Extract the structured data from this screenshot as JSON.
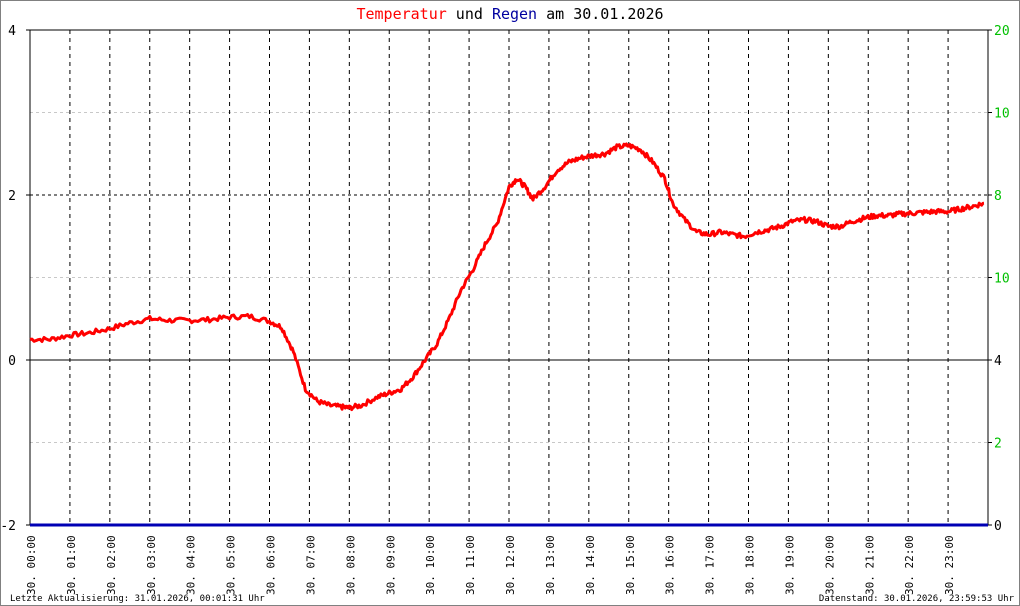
{
  "title": {
    "part1": "Temperatur",
    "part2": " und ",
    "part3": "Regen",
    "part4": " am 30.01.2026"
  },
  "colors": {
    "temperature": "#ff0000",
    "rain": "#0000b4",
    "right_axis_labels": "#00c000",
    "title_text": "#000000",
    "title_temp": "#ff0000",
    "title_rain": "#0000a0",
    "zero_line": "#000000",
    "grid": "#000000",
    "minor_grid": "#c8c8c8",
    "frame": "#000000"
  },
  "footer": {
    "left": "Letzte Aktualisierung: 31.01.2026, 00:01:31 Uhr",
    "right": "Datenstand: 30.01.2026, 23:59:53 Uhr"
  },
  "chart_data": {
    "type": "line",
    "left_axis": {
      "ylim": [
        -2,
        4
      ],
      "ticks": [
        "-2",
        "0",
        "2",
        "4"
      ],
      "tick_values": [
        -2,
        0,
        2,
        4
      ]
    },
    "right_axis": {
      "ticks": [
        "0",
        "2",
        "4",
        "10",
        "8",
        "10",
        "20"
      ],
      "tick_values": [
        -2,
        -1,
        0,
        1,
        2,
        3,
        4
      ]
    },
    "x_ticks": [
      "30. 00:00",
      "30. 01:00",
      "30. 02:00",
      "30. 03:00",
      "30. 04:00",
      "30. 05:00",
      "30. 06:00",
      "30. 07:00",
      "30. 08:00",
      "30. 09:00",
      "30. 10:00",
      "30. 11:00",
      "30. 12:00",
      "30. 13:00",
      "30. 14:00",
      "30. 15:00",
      "30. 16:00",
      "30. 17:00",
      "30. 18:00",
      "30. 19:00",
      "30. 20:00",
      "30. 21:00",
      "30. 22:00",
      "30. 23:00"
    ],
    "xlim_hours": [
      0,
      24
    ],
    "grid": true,
    "series": [
      {
        "name": "Temperatur",
        "x_hours": [
          0,
          0.5,
          1.0,
          1.5,
          2.0,
          2.5,
          3.0,
          3.5,
          4.0,
          4.5,
          5.0,
          5.5,
          6.0,
          6.3,
          6.6,
          6.9,
          7.2,
          7.5,
          7.8,
          8.0,
          8.3,
          8.7,
          9.0,
          9.3,
          9.6,
          9.9,
          10.2,
          10.5,
          10.8,
          11.1,
          11.4,
          11.7,
          12.0,
          12.2,
          12.4,
          12.6,
          12.9,
          13.2,
          13.5,
          13.8,
          14.1,
          14.4,
          14.7,
          15.0,
          15.3,
          15.6,
          15.9,
          16.1,
          16.4,
          16.7,
          17.0,
          17.3,
          17.6,
          17.9,
          18.2,
          18.5,
          18.8,
          19.1,
          19.4,
          19.7,
          20.0,
          20.3,
          20.6,
          20.9,
          21.2,
          21.5,
          21.8,
          22.1,
          22.4,
          22.7,
          23.0,
          23.3,
          23.6,
          23.9
        ],
        "values": [
          0.25,
          0.25,
          0.3,
          0.33,
          0.38,
          0.45,
          0.5,
          0.48,
          0.48,
          0.49,
          0.52,
          0.53,
          0.47,
          0.4,
          0.1,
          -0.35,
          -0.5,
          -0.55,
          -0.57,
          -0.58,
          -0.55,
          -0.45,
          -0.4,
          -0.35,
          -0.2,
          0.0,
          0.2,
          0.5,
          0.85,
          1.1,
          1.4,
          1.65,
          2.1,
          2.2,
          2.1,
          1.95,
          2.1,
          2.3,
          2.4,
          2.45,
          2.48,
          2.5,
          2.58,
          2.6,
          2.55,
          2.4,
          2.2,
          1.9,
          1.7,
          1.55,
          1.52,
          1.55,
          1.52,
          1.5,
          1.55,
          1.58,
          1.62,
          1.68,
          1.7,
          1.68,
          1.62,
          1.62,
          1.68,
          1.72,
          1.75,
          1.75,
          1.77,
          1.78,
          1.79,
          1.8,
          1.8,
          1.83,
          1.86,
          1.9
        ]
      },
      {
        "name": "Regen",
        "x_hours": [
          0,
          24
        ],
        "values": [
          -2,
          -2
        ]
      }
    ]
  }
}
